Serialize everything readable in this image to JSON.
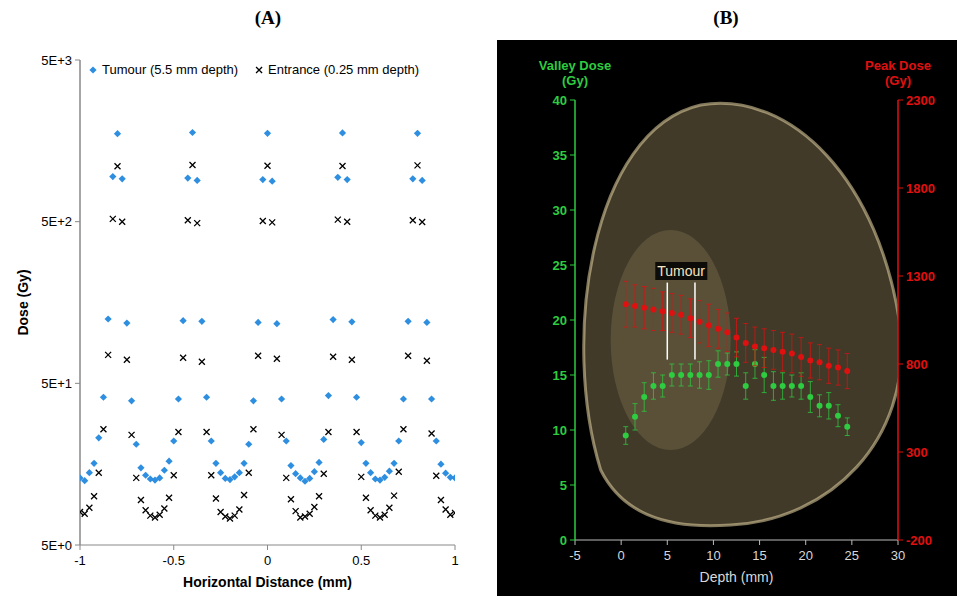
{
  "chart_data": [
    {
      "type": "scatter",
      "title": "(A)",
      "xlabel": "Horizontal Distance (mm)",
      "ylabel": "Dose (Gy)",
      "log": "y",
      "legend": "top",
      "x": [
        -1,
        -0.975,
        -0.95,
        -0.925,
        -0.9,
        -0.875,
        -0.85,
        -0.825,
        -0.8,
        -0.775,
        -0.75,
        -0.725,
        -0.7,
        -0.675,
        -0.65,
        -0.625,
        -0.6,
        -0.575,
        -0.55,
        -0.525,
        -0.5,
        -0.475,
        -0.45,
        -0.425,
        -0.4,
        -0.375,
        -0.35,
        -0.325,
        -0.3,
        -0.275,
        -0.25,
        -0.225,
        -0.2,
        -0.175,
        -0.15,
        -0.125,
        -0.1,
        -0.075,
        -0.05,
        -0.025,
        0,
        0.025,
        0.05,
        0.075,
        0.1,
        0.125,
        0.15,
        0.175,
        0.2,
        0.225,
        0.25,
        0.275,
        0.3,
        0.325,
        0.35,
        0.375,
        0.4,
        0.425,
        0.45,
        0.475,
        0.5,
        0.525,
        0.55,
        0.575,
        0.6,
        0.625,
        0.65,
        0.675,
        0.7,
        0.725,
        0.75,
        0.775,
        0.8,
        0.825,
        0.85,
        0.875,
        0.9,
        0.925,
        0.95,
        0.975,
        1
      ],
      "xlim": [
        -1,
        1
      ],
      "xticks": [
        -1,
        -0.5,
        0,
        0.5,
        1
      ],
      "ylim": [
        5,
        5000
      ],
      "yticks": [
        {
          "value": 5,
          "label": "5E+0"
        },
        {
          "value": 50,
          "label": "5E+1"
        },
        {
          "value": 500,
          "label": "5E+2"
        },
        {
          "value": 5000,
          "label": "5E+3"
        }
      ],
      "series": [
        {
          "name": "Tumour (5.5 mm depth)",
          "color": "#2e8ee0",
          "marker": "diamond",
          "values": [
            13,
            12.5,
            14,
            16,
            23,
            41,
            125,
            950,
            1750,
            920,
            118,
            39,
            21,
            15,
            13.5,
            12.8,
            12.6,
            13,
            14.5,
            16.5,
            22,
            40,
            122,
            930,
            1780,
            900,
            121,
            41,
            22,
            16,
            14,
            12.9,
            12.7,
            13.2,
            14,
            16,
            21,
            39,
            119,
            910,
            1760,
            890,
            117,
            40,
            22,
            15.5,
            13.8,
            13,
            12.4,
            12.9,
            14.2,
            16.2,
            22.5,
            42,
            124,
            940,
            1770,
            910,
            120,
            41,
            21.5,
            16,
            14,
            12.8,
            12.6,
            13.1,
            14.3,
            16,
            22,
            40,
            121,
            920,
            1760,
            900,
            119,
            40,
            22,
            15.8,
            13.9,
            13.1,
            13
          ]
        },
        {
          "name": "Entrance (0.25 mm depth)",
          "color": "#000000",
          "marker": "x",
          "values": [
            8,
            7.8,
            8.5,
            10,
            14,
            26,
            75,
            520,
            1100,
            500,
            70,
            24,
            13,
            9.5,
            8.2,
            7.6,
            7.4,
            7.7,
            8.4,
            9.8,
            13.5,
            25,
            72,
            510,
            1120,
            490,
            68,
            25,
            13.5,
            9.7,
            8,
            7.5,
            7.3,
            7.6,
            8.3,
            10.2,
            14,
            26,
            74,
            505,
            1110,
            495,
            71,
            24,
            13,
            9.6,
            8.1,
            7.4,
            7.5,
            7.8,
            8.6,
            10,
            13.8,
            25,
            73,
            515,
            1105,
            500,
            70,
            25,
            13.2,
            9.8,
            8.2,
            7.6,
            7.4,
            7.7,
            8.5,
            10.1,
            14.2,
            26,
            74,
            510,
            1115,
            498,
            69,
            24.5,
            13.4,
            9.5,
            8.3,
            7.7,
            7.9
          ]
        }
      ]
    },
    {
      "type": "scatter",
      "title": "(B)",
      "xlabel": "Depth (mm)",
      "x": [
        0.5,
        1.5,
        2.5,
        3.5,
        4.5,
        5.5,
        6.5,
        7.5,
        8.5,
        9.5,
        10.5,
        11.5,
        12.5,
        13.5,
        14.5,
        15.5,
        16.5,
        17.5,
        18.5,
        19.5,
        20.5,
        21.5,
        22.5,
        23.5,
        24.5
      ],
      "xlim": [
        -5,
        30
      ],
      "xticks": [
        -5,
        0,
        5,
        10,
        15,
        20,
        25,
        30
      ],
      "ylim": [
        0,
        40
      ],
      "yticks": [
        0,
        5,
        10,
        15,
        20,
        25,
        30,
        35,
        40
      ],
      "y2lim": [
        -200,
        2300
      ],
      "y2ticks": [
        -200,
        300,
        800,
        1300,
        1800,
        2300
      ],
      "series": [
        {
          "name": "Valley Dose (Gy)",
          "color": "#2ecc40",
          "marker": "circle",
          "values": [
            9.5,
            11.2,
            13,
            14,
            14,
            15,
            15,
            15,
            15,
            15,
            16,
            16,
            16,
            14,
            16,
            15,
            14,
            14,
            14,
            14,
            13,
            12.2,
            12.2,
            11.3,
            10.3
          ],
          "errors": [
            0.8,
            1.2,
            1.3,
            1.2,
            1.0,
            1.0,
            1.0,
            1.0,
            1.2,
            1.3,
            1.2,
            1.0,
            1.1,
            1.2,
            1.3,
            1.6,
            1.3,
            1.2,
            1.0,
            1.2,
            1.4,
            1.0,
            1.2,
            1.0,
            0.8
          ]
        },
        {
          "name": "Peak Dose (Gy)",
          "color": "#e01010",
          "marker": "circle",
          "axis": "y2",
          "values": [
            1140,
            1130,
            1120,
            1110,
            1100,
            1090,
            1080,
            1060,
            1040,
            1020,
            1000,
            980,
            950,
            920,
            900,
            890,
            880,
            870,
            860,
            840,
            820,
            810,
            790,
            780,
            760
          ],
          "errors": [
            130,
            120,
            120,
            120,
            110,
            110,
            110,
            110,
            120,
            120,
            110,
            110,
            110,
            110,
            110,
            110,
            110,
            110,
            110,
            110,
            100,
            100,
            100,
            100,
            100
          ]
        }
      ],
      "annotations": [
        {
          "text": "Tumour",
          "x_start": 5,
          "x_end": 8
        }
      ]
    }
  ]
}
